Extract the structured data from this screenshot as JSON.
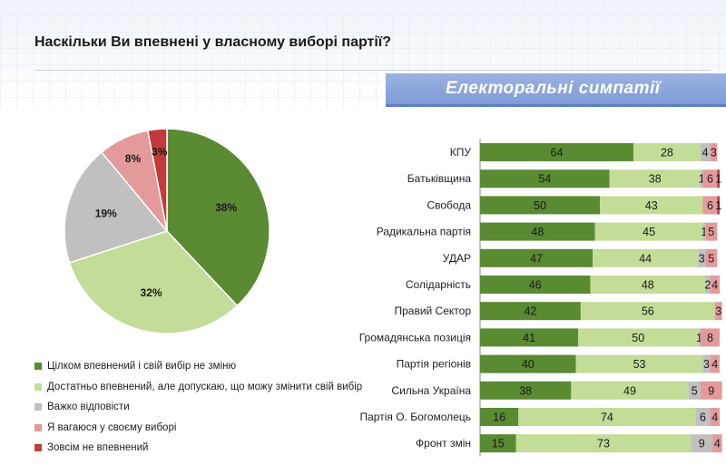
{
  "title": "Наскільки Ви впевнені у власному виборі партії?",
  "banner": "Електоральні симпатії",
  "colors": {
    "dark_green": "#5a8a32",
    "light_green": "#c3dc98",
    "gray": "#c0c0c0",
    "pink": "#e49a9a",
    "red": "#c43a3a"
  },
  "legend": [
    {
      "label": "Цілком впевнений і свій вибір не зміню",
      "color": "#5a8a32"
    },
    {
      "label": "Достатньо впевнений, але допускаю, що можу змінити свій вибір",
      "color": "#c3dc98"
    },
    {
      "label": "Важко відповісти",
      "color": "#c0c0c0"
    },
    {
      "label": "Я вагаюся у своєму виборі",
      "color": "#e49a9a"
    },
    {
      "label": "Зовсім не впевнений",
      "color": "#c43a3a"
    }
  ],
  "chart_data": [
    {
      "type": "pie",
      "categories": [
        "Цілком впевнений і свій вибір не зміню",
        "Достатньо впевнений, але допускаю, що можу змінити свій вибір",
        "Важко відповісти",
        "Я вагаюся у своєму виборі",
        "Зовсім не впевнений"
      ],
      "values": [
        38,
        32,
        19,
        8,
        3
      ],
      "labels": [
        "38%",
        "32%",
        "19%",
        "8%",
        "3%"
      ],
      "colors": [
        "#5a8a32",
        "#c3dc98",
        "#c0c0c0",
        "#e49a9a",
        "#c43a3a"
      ]
    },
    {
      "type": "bar",
      "stacked": true,
      "orientation": "horizontal",
      "categories": [
        "КПУ",
        "Батьківщина",
        "Свобода",
        "Радикальна партія",
        "УДАР",
        "Солідарність",
        "Правий Сектор",
        "Громадянська позиція",
        "Партія регіонів",
        "Сильна Україна",
        "Партія О. Богомолець",
        "Фронт змін"
      ],
      "series": [
        {
          "values": [
            64,
            54,
            50,
            48,
            47,
            46,
            42,
            41,
            40,
            38,
            16,
            15
          ],
          "color": "#5a8a32"
        },
        {
          "values": [
            28,
            38,
            43,
            45,
            44,
            48,
            56,
            50,
            53,
            49,
            74,
            73
          ],
          "color": "#c3dc98"
        },
        {
          "values": [
            4,
            1,
            0,
            1,
            3,
            2,
            0,
            1,
            3,
            5,
            6,
            9
          ],
          "color": "#c0c0c0"
        },
        {
          "values": [
            3,
            6,
            6,
            5,
            5,
            4,
            3,
            8,
            4,
            9,
            4,
            4
          ],
          "color": "#e49a9a"
        },
        {
          "values": [
            0,
            1,
            1,
            0,
            0,
            0,
            0,
            0,
            0,
            0,
            0,
            0
          ],
          "color": "#c43a3a"
        }
      ],
      "labels": [
        [
          "64",
          "28",
          "4",
          "3",
          ""
        ],
        [
          "54",
          "38",
          "1",
          "6",
          "1"
        ],
        [
          "50",
          "43",
          "",
          "6",
          "1"
        ],
        [
          "48",
          "45",
          "1",
          "5",
          ""
        ],
        [
          "47",
          "44",
          "3",
          "5",
          ""
        ],
        [
          "46",
          "48",
          "2",
          "4",
          ""
        ],
        [
          "42",
          "56",
          "",
          "3",
          ""
        ],
        [
          "41",
          "50",
          "1",
          "8",
          ""
        ],
        [
          "40",
          "53",
          "3",
          "4",
          ""
        ],
        [
          "38",
          "49",
          "5",
          "9",
          ""
        ],
        [
          "16",
          "74",
          "6",
          "4",
          ""
        ],
        [
          "15",
          "73",
          "9",
          "4",
          ""
        ]
      ],
      "xlim": [
        0,
        100
      ]
    }
  ]
}
